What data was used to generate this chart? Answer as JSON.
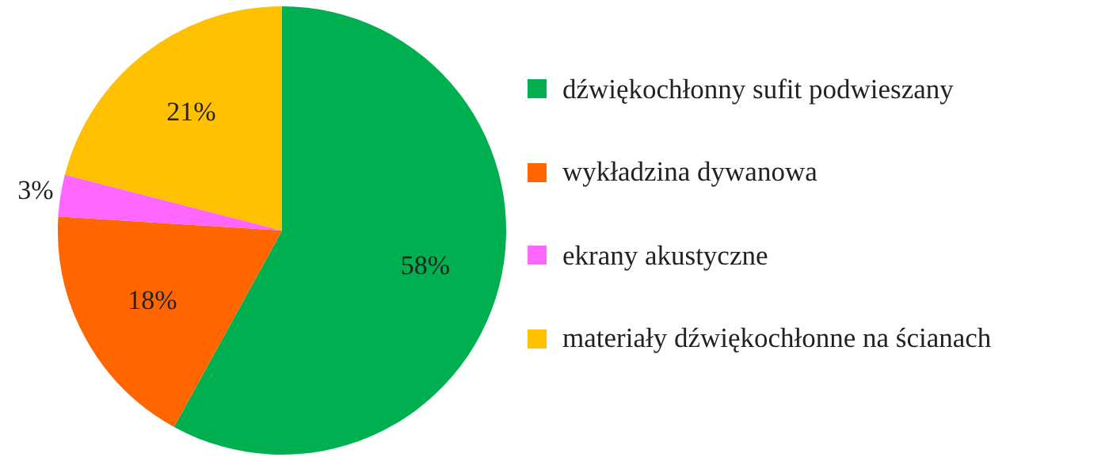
{
  "chart_data": {
    "type": "pie",
    "categories": [
      "dźwiękochłonny sufit podwieszany",
      "wykładzina dywanowa",
      "ekrany akustyczne",
      "materiały dźwiękochłonne na ścianach"
    ],
    "values": [
      58,
      18,
      3,
      21
    ],
    "colors": [
      "#00b050",
      "#ff6600",
      "#ff66ff",
      "#ffc000"
    ],
    "value_labels": [
      "58%",
      "18%",
      "3%",
      "21%"
    ],
    "legend": "right"
  }
}
